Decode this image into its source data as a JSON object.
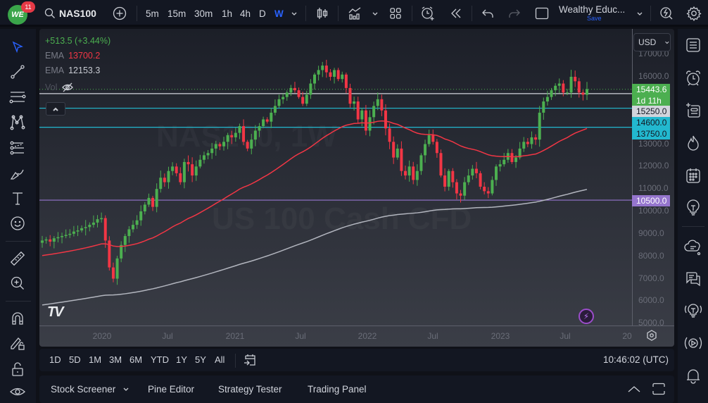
{
  "topbar": {
    "logo_text": "WE",
    "notification_count": "11",
    "symbol": "NAS100",
    "timeframes": [
      "5m",
      "15m",
      "30m",
      "1h",
      "4h",
      "D",
      "W"
    ],
    "active_timeframe": "W",
    "layout_name": "Wealthy Educ...",
    "save_label": "Save"
  },
  "legend": {
    "change": "+513.5 (+3.44%)",
    "change_color": "#4caf50",
    "ema1_label": "EMA",
    "ema1_value": "13700.2",
    "ema1_color": "#f23645",
    "ema2_label": "EMA",
    "ema2_value": "12153.3",
    "ema2_color": "#c8cbd2",
    "vol_label": "Vol"
  },
  "currency": "USD",
  "watermark": {
    "symbol": "NAS100, 1W",
    "description": "US 100 Cash CFD"
  },
  "price_axis": {
    "ticks": [
      "17000.0",
      "16000.0",
      "13000.0",
      "12000.0",
      "11000.0",
      "10000.0",
      "9000.0",
      "8000.0",
      "7000.0",
      "6000.0",
      "5000.0"
    ]
  },
  "price_labels": [
    {
      "value": "15443.6",
      "sub": "1d 11h",
      "bg": "#4caf50",
      "color": "#ffffff"
    },
    {
      "value": "15250.0",
      "bg": "#d1d4dc",
      "color": "#131722"
    },
    {
      "value": "14600.0",
      "bg": "#22b8cf",
      "color": "#131722"
    },
    {
      "value": "13750.0",
      "bg": "#22b8cf",
      "color": "#131722"
    },
    {
      "value": "10500.0",
      "bg": "#9575cd",
      "color": "#ffffff"
    }
  ],
  "time_axis": {
    "ticks": [
      "2020",
      "Jul",
      "2021",
      "Jul",
      "2022",
      "Jul",
      "2023",
      "Jul",
      "20"
    ]
  },
  "range_bar": {
    "ranges": [
      "1D",
      "5D",
      "1M",
      "3M",
      "6M",
      "YTD",
      "1Y",
      "5Y",
      "All"
    ],
    "clock": "10:46:02 (UTC)"
  },
  "bottom_bar": {
    "tabs": [
      "Stock Screener",
      "Pine Editor",
      "Strategy Tester",
      "Trading Panel"
    ]
  },
  "chart_data": {
    "type": "candlestick",
    "symbol": "NAS100",
    "interval": "1W",
    "ylim": [
      5000,
      17300
    ],
    "x_ticks": [
      "2020",
      "Jul",
      "2021",
      "Jul",
      "2022",
      "Jul",
      "2023",
      "Jul",
      "20"
    ],
    "horizontal_lines": [
      {
        "price": 15250,
        "color": "#d1d4dc"
      },
      {
        "price": 14600,
        "color": "#22b8cf"
      },
      {
        "price": 13750,
        "color": "#22b8cf"
      },
      {
        "price": 10500,
        "color": "#9575cd"
      }
    ],
    "last_price": 15443.6,
    "indicators": [
      {
        "name": "EMA",
        "value": 13700.2,
        "color": "#f23645"
      },
      {
        "name": "EMA",
        "value": 12153.3,
        "color": "#c8cbd2"
      }
    ],
    "close_series_approx": [
      8700,
      8750,
      8650,
      8800,
      8850,
      8900,
      8950,
      9000,
      9100,
      9150,
      9250,
      9300,
      9400,
      9500,
      9650,
      9700,
      8700,
      7500,
      7000,
      7900,
      8500,
      8900,
      9200,
      9400,
      9600,
      10000,
      10300,
      10600,
      10200,
      11000,
      11500,
      11300,
      11800,
      12000,
      11700,
      11300,
      12200,
      12100,
      11600,
      12000,
      12300,
      12500,
      12600,
      12800,
      13000,
      12900,
      13100,
      13400,
      13300,
      13500,
      13800,
      13100,
      12800,
      13200,
      13600,
      13800,
      14100,
      14000,
      14400,
      14700,
      15000,
      15100,
      15300,
      15500,
      15400,
      15100,
      14800,
      15200,
      15700,
      16100,
      16300,
      16500,
      16200,
      16000,
      16300,
      15900,
      16100,
      15500,
      14800,
      14900,
      14100,
      14500,
      13600,
      14200,
      14700,
      15000,
      14500,
      13700,
      13100,
      12400,
      12800,
      11800,
      11600,
      12000,
      11400,
      11800,
      12500,
      13000,
      13400,
      13100,
      12600,
      11600,
      11100,
      11800,
      11300,
      10800,
      10700,
      11300,
      11600,
      11900,
      11700,
      11100,
      10900,
      10800,
      11400,
      12000,
      12100,
      12300,
      12600,
      12200,
      12400,
      12800,
      13100,
      13000,
      13300,
      13200,
      14400,
      14900,
      15100,
      15400,
      15600,
      15700,
      15300,
      15300,
      16000,
      15800,
      15300,
      15200,
      15450
    ]
  }
}
